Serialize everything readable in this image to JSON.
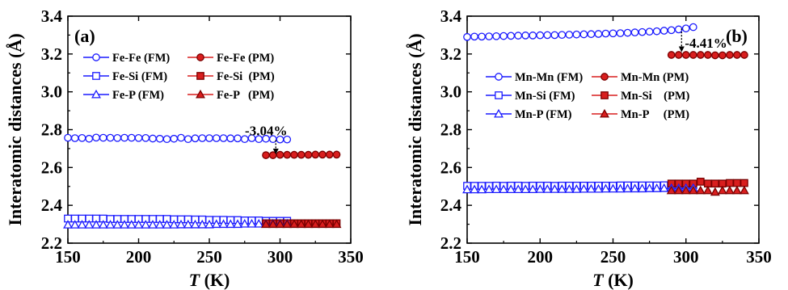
{
  "chart_data": [
    {
      "type": "scatter",
      "panel_label": "(a)",
      "xlabel": {
        "italic": "T",
        "rest": " (K)"
      },
      "ylabel": "Interatomic distances (Å)",
      "xlim": [
        150,
        350
      ],
      "ylim": [
        2.2,
        3.4
      ],
      "xticks": [
        150,
        200,
        250,
        300,
        350
      ],
      "yticks": [
        2.2,
        2.4,
        2.6,
        2.8,
        3.0,
        3.2,
        3.4
      ],
      "ytick_labels": [
        "2.2",
        "2.4",
        "2.6",
        "2.8",
        "3.0",
        "3.2",
        "3.4"
      ],
      "annotation": {
        "text": "-3.04%",
        "x": 297,
        "y_from": 2.745,
        "y_to": 2.67
      },
      "legend": {
        "position": "upper-left",
        "entries": [
          "Fe-Fe (FM)",
          "Fe-Fe (PM)",
          "Fe-Si (FM)",
          "Fe-Si  (PM)",
          "Fe-P (FM)",
          "Fe-P   (PM)"
        ]
      },
      "series": [
        {
          "name": "Fe-Fe (FM)",
          "marker": "circle",
          "filled": false,
          "color": "#1a1aff",
          "x": [
            150,
            155,
            160,
            165,
            170,
            175,
            180,
            185,
            190,
            195,
            200,
            205,
            210,
            215,
            220,
            225,
            230,
            235,
            240,
            245,
            250,
            255,
            260,
            265,
            270,
            275,
            280,
            285,
            290,
            295,
            300,
            305
          ],
          "y": [
            2.757,
            2.755,
            2.756,
            2.752,
            2.758,
            2.757,
            2.757,
            2.756,
            2.757,
            2.757,
            2.756,
            2.756,
            2.753,
            2.752,
            2.75,
            2.752,
            2.757,
            2.75,
            2.754,
            2.755,
            2.755,
            2.755,
            2.755,
            2.754,
            2.754,
            2.75,
            2.755,
            2.75,
            2.752,
            2.75,
            2.748,
            2.748
          ]
        },
        {
          "name": "Fe-Fe (PM)",
          "marker": "circle",
          "filled": true,
          "color": "#d91e1e",
          "x": [
            290,
            295,
            300,
            305,
            310,
            315,
            320,
            325,
            330,
            335,
            340
          ],
          "y": [
            2.665,
            2.665,
            2.667,
            2.667,
            2.667,
            2.667,
            2.667,
            2.668,
            2.668,
            2.668,
            2.668
          ]
        },
        {
          "name": "Fe-Si (FM)",
          "marker": "square",
          "filled": false,
          "color": "#1a1aff",
          "x": [
            150,
            155,
            160,
            165,
            170,
            175,
            180,
            185,
            190,
            195,
            200,
            205,
            210,
            215,
            220,
            225,
            230,
            235,
            240,
            245,
            250,
            255,
            260,
            265,
            270,
            275,
            280,
            285,
            290,
            295,
            300,
            305
          ],
          "y": [
            2.33,
            2.33,
            2.33,
            2.33,
            2.33,
            2.33,
            2.328,
            2.328,
            2.328,
            2.328,
            2.328,
            2.328,
            2.328,
            2.328,
            2.328,
            2.326,
            2.326,
            2.326,
            2.325,
            2.325,
            2.323,
            2.323,
            2.323,
            2.322,
            2.322,
            2.32,
            2.32,
            2.32,
            2.318,
            2.318,
            2.318,
            2.318
          ]
        },
        {
          "name": "Fe-Si  (PM)",
          "marker": "square",
          "filled": true,
          "color": "#d91e1e",
          "x": [
            290,
            295,
            300,
            305,
            310,
            315,
            320,
            325,
            330,
            335,
            340
          ],
          "y": [
            2.305,
            2.305,
            2.305,
            2.305,
            2.305,
            2.305,
            2.305,
            2.305,
            2.305,
            2.305,
            2.305
          ]
        },
        {
          "name": "Fe-P (FM)",
          "marker": "triangle",
          "filled": false,
          "color": "#1a1aff",
          "x": [
            150,
            155,
            160,
            165,
            170,
            175,
            180,
            185,
            190,
            195,
            200,
            205,
            210,
            215,
            220,
            225,
            230,
            235,
            240,
            245,
            250,
            255,
            260,
            265,
            270,
            275,
            280,
            285,
            290,
            295,
            300,
            305
          ],
          "y": [
            2.297,
            2.297,
            2.297,
            2.297,
            2.297,
            2.297,
            2.297,
            2.297,
            2.297,
            2.297,
            2.297,
            2.297,
            2.297,
            2.297,
            2.297,
            2.297,
            2.298,
            2.298,
            2.298,
            2.298,
            2.298,
            2.3,
            2.3,
            2.3,
            2.3,
            2.302,
            2.302,
            2.302,
            2.302,
            2.303,
            2.303,
            2.303
          ]
        },
        {
          "name": "Fe-P   (PM)",
          "marker": "triangle",
          "filled": true,
          "color": "#d91e1e",
          "x": [
            290,
            295,
            300,
            305,
            310,
            315,
            320,
            325,
            330,
            335,
            340
          ],
          "y": [
            2.3,
            2.3,
            2.3,
            2.3,
            2.3,
            2.3,
            2.3,
            2.3,
            2.3,
            2.3,
            2.3
          ]
        }
      ]
    },
    {
      "type": "scatter",
      "panel_label": "(b)",
      "xlabel": {
        "italic": "T",
        "rest": " (K)"
      },
      "ylabel": "Interatomic distances (Å)",
      "xlim": [
        150,
        350
      ],
      "ylim": [
        2.2,
        3.4
      ],
      "xticks": [
        150,
        200,
        250,
        300,
        350
      ],
      "yticks": [
        2.2,
        2.4,
        2.6,
        2.8,
        3.0,
        3.2,
        3.4
      ],
      "ytick_labels": [
        "2.2",
        "2.4",
        "2.6",
        "2.8",
        "3.0",
        "3.2",
        "3.4"
      ],
      "annotation": {
        "text": "-4.41%",
        "x": 297,
        "y_from": 3.335,
        "y_to": 3.21
      },
      "legend": {
        "position": "upper-left",
        "entries": [
          "Mn-Mn (FM)",
          "Mn-Mn (PM)",
          "Mn-Si (FM)",
          "Mn-Si    (PM)",
          "Mn-P (FM)",
          "Mn-P     (PM)"
        ]
      },
      "series": [
        {
          "name": "Mn-Mn (FM)",
          "marker": "circle",
          "filled": false,
          "color": "#1a1aff",
          "x": [
            150,
            155,
            160,
            165,
            170,
            175,
            180,
            185,
            190,
            195,
            200,
            205,
            210,
            215,
            220,
            225,
            230,
            235,
            240,
            245,
            250,
            255,
            260,
            265,
            270,
            275,
            280,
            285,
            290,
            295,
            300,
            305
          ],
          "y": [
            3.29,
            3.292,
            3.292,
            3.293,
            3.294,
            3.295,
            3.296,
            3.297,
            3.298,
            3.298,
            3.299,
            3.3,
            3.3,
            3.301,
            3.302,
            3.303,
            3.304,
            3.305,
            3.306,
            3.308,
            3.309,
            3.31,
            3.312,
            3.314,
            3.316,
            3.318,
            3.32,
            3.323,
            3.326,
            3.33,
            3.335,
            3.342
          ]
        },
        {
          "name": "Mn-Mn (PM)",
          "marker": "circle",
          "filled": true,
          "color": "#d91e1e",
          "x": [
            290,
            295,
            300,
            305,
            310,
            315,
            320,
            325,
            330,
            335,
            340
          ],
          "y": [
            3.195,
            3.195,
            3.195,
            3.195,
            3.195,
            3.195,
            3.193,
            3.193,
            3.195,
            3.195,
            3.195
          ]
        },
        {
          "name": "Mn-Si (FM)",
          "marker": "square",
          "filled": false,
          "color": "#1a1aff",
          "x": [
            150,
            155,
            160,
            165,
            170,
            175,
            180,
            185,
            190,
            195,
            200,
            205,
            210,
            215,
            220,
            225,
            230,
            235,
            240,
            245,
            250,
            255,
            260,
            265,
            270,
            275,
            280,
            285,
            290,
            295,
            300,
            305
          ],
          "y": [
            2.503,
            2.503,
            2.503,
            2.503,
            2.504,
            2.503,
            2.504,
            2.504,
            2.503,
            2.504,
            2.504,
            2.504,
            2.503,
            2.504,
            2.504,
            2.504,
            2.504,
            2.504,
            2.504,
            2.504,
            2.504,
            2.505,
            2.505,
            2.505,
            2.505,
            2.505,
            2.505,
            2.506,
            2.506,
            2.506,
            2.507,
            2.507
          ]
        },
        {
          "name": "Mn-Si    (PM)",
          "marker": "square",
          "filled": true,
          "color": "#d91e1e",
          "x": [
            290,
            295,
            300,
            305,
            310,
            315,
            320,
            325,
            330,
            335,
            340
          ],
          "y": [
            2.515,
            2.515,
            2.515,
            2.515,
            2.525,
            2.515,
            2.515,
            2.515,
            2.518,
            2.518,
            2.518
          ]
        },
        {
          "name": "Mn-P (FM)",
          "marker": "triangle",
          "filled": false,
          "color": "#1a1aff",
          "x": [
            150,
            155,
            160,
            165,
            170,
            175,
            180,
            185,
            190,
            195,
            200,
            205,
            210,
            215,
            220,
            225,
            230,
            235,
            240,
            245,
            250,
            255,
            260,
            265,
            270,
            275,
            280,
            285,
            290,
            295,
            300,
            305
          ],
          "y": [
            2.483,
            2.483,
            2.483,
            2.484,
            2.484,
            2.484,
            2.484,
            2.484,
            2.484,
            2.484,
            2.485,
            2.485,
            2.485,
            2.485,
            2.485,
            2.485,
            2.486,
            2.486,
            2.486,
            2.487,
            2.487,
            2.487,
            2.488,
            2.488,
            2.488,
            2.489,
            2.489,
            2.49,
            2.49,
            2.49,
            2.491,
            2.491
          ]
        },
        {
          "name": "Mn-P     (PM)",
          "marker": "triangle",
          "filled": true,
          "color": "#d91e1e",
          "x": [
            290,
            295,
            300,
            305,
            310,
            315,
            320,
            325,
            330,
            335,
            340
          ],
          "y": [
            2.478,
            2.478,
            2.478,
            2.478,
            2.478,
            2.478,
            2.47,
            2.478,
            2.478,
            2.478,
            2.478
          ]
        }
      ]
    }
  ]
}
